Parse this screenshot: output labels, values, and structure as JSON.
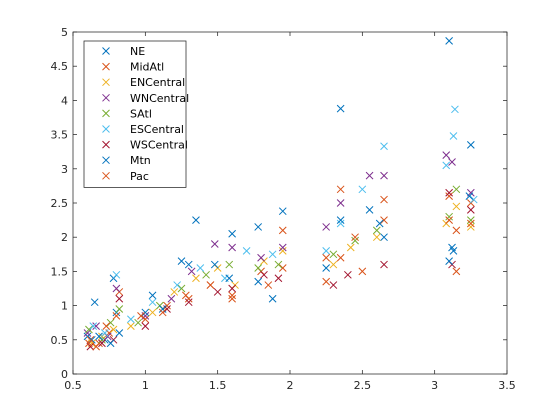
{
  "chart_data": {
    "type": "scatter",
    "marker": "x",
    "title": "",
    "xlabel": "",
    "ylabel": "",
    "xlim": [
      0.5,
      3.5
    ],
    "ylim": [
      0,
      5
    ],
    "xticks": [
      "0.5",
      "1",
      "1.5",
      "2",
      "2.5",
      "3",
      "3.5"
    ],
    "yticks": [
      "0",
      "0.5",
      "1",
      "1.5",
      "2",
      "2.5",
      "3",
      "3.5",
      "4",
      "4.5",
      "5"
    ],
    "grid": false,
    "legend_position": "top-left",
    "series": [
      {
        "name": "NE",
        "color": "#0072BD",
        "points": [
          [
            0.6,
            0.55
          ],
          [
            0.65,
            1.05
          ],
          [
            0.72,
            0.5
          ],
          [
            0.78,
            1.4
          ],
          [
            0.8,
            0.9
          ],
          [
            1.05,
            1.15
          ],
          [
            1.25,
            1.65
          ],
          [
            1.35,
            2.25
          ],
          [
            1.6,
            2.05
          ],
          [
            1.78,
            2.15
          ],
          [
            1.95,
            2.38
          ],
          [
            2.35,
            3.88
          ],
          [
            2.55,
            2.4
          ],
          [
            2.65,
            2.0
          ],
          [
            3.1,
            4.87
          ],
          [
            3.12,
            1.85
          ],
          [
            3.25,
            3.35
          ]
        ]
      },
      {
        "name": "MidAtl",
        "color": "#D95319",
        "points": [
          [
            0.62,
            0.5
          ],
          [
            0.68,
            0.45
          ],
          [
            0.75,
            0.6
          ],
          [
            0.82,
            1.2
          ],
          [
            1.0,
            0.8
          ],
          [
            1.15,
            1.0
          ],
          [
            1.3,
            1.1
          ],
          [
            1.45,
            1.3
          ],
          [
            1.6,
            1.15
          ],
          [
            1.8,
            1.5
          ],
          [
            1.95,
            1.55
          ],
          [
            2.25,
            1.35
          ],
          [
            2.35,
            1.7
          ],
          [
            2.5,
            1.5
          ],
          [
            2.65,
            2.25
          ],
          [
            3.1,
            2.6
          ],
          [
            3.15,
            1.5
          ],
          [
            3.25,
            2.5
          ]
        ]
      },
      {
        "name": "ENCentral",
        "color": "#EDB120",
        "points": [
          [
            0.63,
            0.45
          ],
          [
            0.7,
            0.55
          ],
          [
            0.78,
            0.65
          ],
          [
            0.9,
            0.7
          ],
          [
            1.05,
            0.9
          ],
          [
            1.2,
            1.2
          ],
          [
            1.35,
            1.4
          ],
          [
            1.5,
            1.55
          ],
          [
            1.62,
            1.3
          ],
          [
            1.82,
            1.65
          ],
          [
            1.95,
            1.8
          ],
          [
            2.3,
            1.6
          ],
          [
            2.42,
            1.85
          ],
          [
            2.6,
            2.0
          ],
          [
            3.08,
            2.2
          ],
          [
            3.15,
            2.45
          ],
          [
            3.25,
            2.15
          ]
        ]
      },
      {
        "name": "WNCentral",
        "color": "#7E2F8E",
        "points": [
          [
            0.6,
            0.6
          ],
          [
            0.66,
            0.7
          ],
          [
            0.74,
            0.55
          ],
          [
            0.8,
            1.25
          ],
          [
            1.0,
            0.85
          ],
          [
            1.18,
            1.1
          ],
          [
            1.32,
            1.5
          ],
          [
            1.48,
            1.9
          ],
          [
            1.6,
            1.85
          ],
          [
            1.8,
            1.7
          ],
          [
            1.95,
            1.85
          ],
          [
            2.25,
            2.15
          ],
          [
            2.35,
            2.5
          ],
          [
            2.55,
            2.9
          ],
          [
            2.65,
            2.9
          ],
          [
            3.08,
            3.2
          ],
          [
            3.12,
            3.1
          ],
          [
            3.25,
            2.65
          ]
        ]
      },
      {
        "name": "SAtl",
        "color": "#77AC30",
        "points": [
          [
            0.61,
            0.65
          ],
          [
            0.7,
            0.5
          ],
          [
            0.76,
            0.75
          ],
          [
            0.82,
            0.95
          ],
          [
            0.95,
            0.75
          ],
          [
            1.1,
            1.0
          ],
          [
            1.25,
            1.25
          ],
          [
            1.42,
            1.45
          ],
          [
            1.58,
            1.6
          ],
          [
            1.78,
            1.55
          ],
          [
            1.92,
            1.6
          ],
          [
            2.3,
            1.75
          ],
          [
            2.45,
            1.95
          ],
          [
            2.6,
            2.1
          ],
          [
            3.1,
            2.3
          ],
          [
            3.15,
            2.7
          ],
          [
            3.25,
            2.25
          ]
        ]
      },
      {
        "name": "ESCentral",
        "color": "#4DBEEE",
        "points": [
          [
            0.64,
            0.7
          ],
          [
            0.72,
            0.6
          ],
          [
            0.8,
            1.45
          ],
          [
            0.9,
            0.8
          ],
          [
            1.05,
            1.05
          ],
          [
            1.22,
            1.3
          ],
          [
            1.38,
            1.55
          ],
          [
            1.55,
            1.4
          ],
          [
            1.7,
            1.8
          ],
          [
            1.88,
            1.75
          ],
          [
            2.25,
            1.8
          ],
          [
            2.35,
            2.2
          ],
          [
            2.5,
            2.7
          ],
          [
            2.65,
            3.33
          ],
          [
            3.08,
            3.05
          ],
          [
            3.14,
            3.87
          ],
          [
            3.13,
            3.48
          ],
          [
            3.27,
            2.55
          ]
        ]
      },
      {
        "name": "WSCentral",
        "color": "#A2142F",
        "points": [
          [
            0.62,
            0.4
          ],
          [
            0.7,
            0.45
          ],
          [
            0.78,
            0.5
          ],
          [
            0.82,
            1.1
          ],
          [
            1.0,
            0.7
          ],
          [
            1.15,
            0.95
          ],
          [
            1.3,
            1.05
          ],
          [
            1.5,
            1.2
          ],
          [
            1.6,
            1.25
          ],
          [
            1.82,
            1.45
          ],
          [
            1.92,
            1.4
          ],
          [
            2.3,
            1.3
          ],
          [
            2.4,
            1.45
          ],
          [
            2.65,
            1.6
          ],
          [
            3.1,
            2.65
          ],
          [
            3.12,
            1.6
          ],
          [
            3.25,
            2.4
          ]
        ]
      },
      {
        "name": "Mtn",
        "color": "#0072BD",
        "points": [
          [
            0.63,
            0.5
          ],
          [
            0.68,
            0.55
          ],
          [
            0.76,
            0.45
          ],
          [
            0.82,
            0.6
          ],
          [
            1.0,
            0.9
          ],
          [
            1.12,
            0.95
          ],
          [
            1.3,
            1.6
          ],
          [
            1.48,
            1.6
          ],
          [
            1.58,
            1.4
          ],
          [
            1.78,
            1.35
          ],
          [
            1.88,
            1.1
          ],
          [
            2.25,
            1.55
          ],
          [
            2.35,
            2.25
          ],
          [
            2.62,
            2.2
          ],
          [
            3.1,
            1.65
          ],
          [
            3.13,
            1.8
          ],
          [
            3.24,
            2.6
          ]
        ]
      },
      {
        "name": "Pac",
        "color": "#D95319",
        "points": [
          [
            0.61,
            0.45
          ],
          [
            0.66,
            0.4
          ],
          [
            0.73,
            0.7
          ],
          [
            0.8,
            0.85
          ],
          [
            0.97,
            0.85
          ],
          [
            1.12,
            0.9
          ],
          [
            1.28,
            1.15
          ],
          [
            1.45,
            1.3
          ],
          [
            1.6,
            1.1
          ],
          [
            1.85,
            1.3
          ],
          [
            1.95,
            2.1
          ],
          [
            2.25,
            1.7
          ],
          [
            2.35,
            2.7
          ],
          [
            2.45,
            2.0
          ],
          [
            2.65,
            2.55
          ],
          [
            3.1,
            2.25
          ],
          [
            3.15,
            2.1
          ],
          [
            3.25,
            2.2
          ]
        ]
      }
    ]
  }
}
